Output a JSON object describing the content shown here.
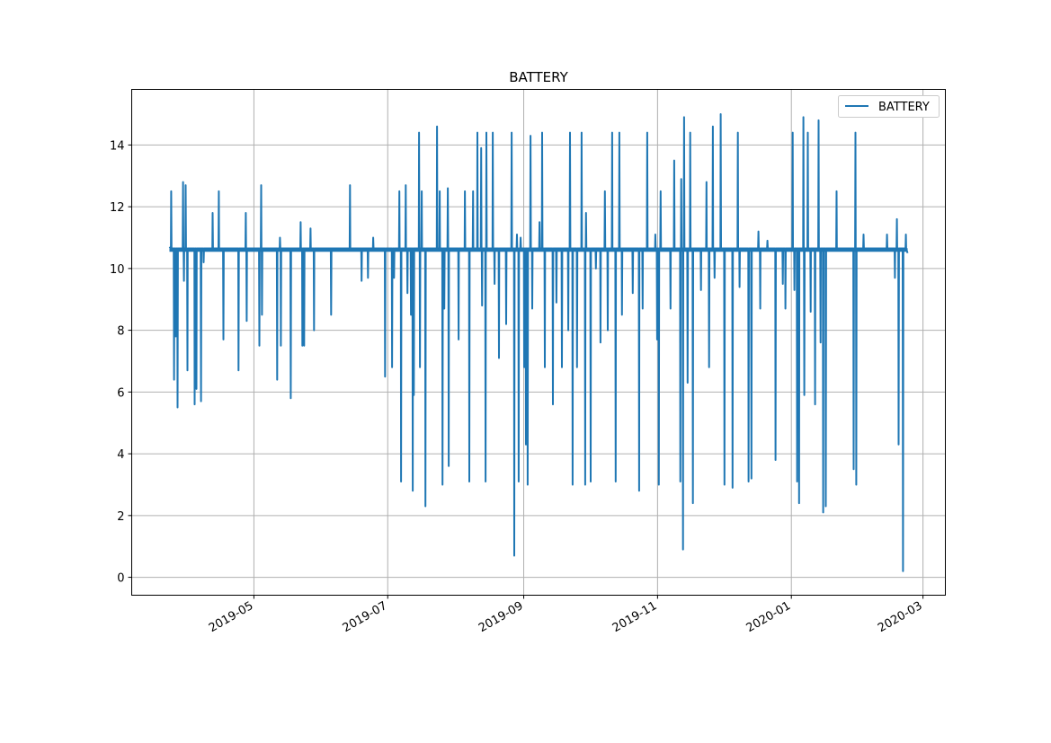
{
  "chart_data": {
    "type": "line",
    "title": "BATTERY",
    "xlabel": "",
    "ylabel": "",
    "x_units": "days since 2019-01-01",
    "xlim": [
      64.3,
      435.2
    ],
    "ylim": [
      -0.58,
      15.8
    ],
    "grid": true,
    "legend": {
      "position": "top-right",
      "entries": [
        "BATTERY"
      ]
    },
    "line_color": "#1f77b4",
    "baseline": 10.65,
    "x_ticks": [
      {
        "value": 120,
        "label": "2019-05"
      },
      {
        "value": 181,
        "label": "2019-07"
      },
      {
        "value": 243,
        "label": "2019-09"
      },
      {
        "value": 304,
        "label": "2019-11"
      },
      {
        "value": 365,
        "label": "2020-01"
      },
      {
        "value": 425,
        "label": "2020-03"
      }
    ],
    "y_ticks": [
      0,
      2,
      4,
      6,
      8,
      10,
      12,
      14
    ],
    "series": [
      {
        "name": "BATTERY",
        "start": [
          81.5,
          10.7
        ],
        "end": [
          418.0,
          10.5
        ],
        "spikes": [
          [
            82.3,
            12.5
          ],
          [
            83.6,
            6.4
          ],
          [
            84.4,
            7.8
          ],
          [
            85.2,
            5.5
          ],
          [
            87.7,
            12.8
          ],
          [
            88.1,
            9.6
          ],
          [
            88.9,
            12.7
          ],
          [
            89.7,
            6.7
          ],
          [
            93.0,
            5.6
          ],
          [
            93.8,
            6.1
          ],
          [
            95.9,
            5.7
          ],
          [
            97.1,
            10.2
          ],
          [
            101.2,
            11.8
          ],
          [
            104.0,
            12.5
          ],
          [
            106.1,
            7.7
          ],
          [
            113.0,
            6.7
          ],
          [
            116.3,
            11.8
          ],
          [
            116.7,
            8.3
          ],
          [
            122.5,
            7.5
          ],
          [
            123.3,
            12.7
          ],
          [
            123.7,
            8.5
          ],
          [
            130.6,
            6.4
          ],
          [
            131.9,
            11.0
          ],
          [
            132.3,
            7.5
          ],
          [
            136.8,
            5.8
          ],
          [
            141.3,
            11.5
          ],
          [
            142.1,
            7.5
          ],
          [
            142.9,
            7.5
          ],
          [
            145.8,
            11.3
          ],
          [
            147.4,
            8.0
          ],
          [
            155.2,
            8.5
          ],
          [
            163.8,
            12.7
          ],
          [
            169.1,
            9.6
          ],
          [
            172.0,
            9.7
          ],
          [
            174.4,
            11.0
          ],
          [
            179.8,
            6.5
          ],
          [
            183.0,
            6.8
          ],
          [
            183.9,
            9.7
          ],
          [
            186.3,
            12.5
          ],
          [
            187.1,
            3.1
          ],
          [
            189.2,
            12.7
          ],
          [
            190.0,
            9.2
          ],
          [
            191.6,
            8.5
          ],
          [
            192.4,
            2.8
          ],
          [
            192.9,
            5.9
          ],
          [
            195.3,
            14.4
          ],
          [
            195.7,
            6.8
          ],
          [
            196.5,
            12.5
          ],
          [
            198.2,
            2.3
          ],
          [
            203.5,
            14.6
          ],
          [
            204.7,
            12.5
          ],
          [
            206.0,
            3.0
          ],
          [
            206.8,
            8.7
          ],
          [
            208.4,
            12.6
          ],
          [
            208.8,
            3.6
          ],
          [
            213.3,
            7.7
          ],
          [
            216.2,
            12.5
          ],
          [
            218.2,
            3.1
          ],
          [
            219.9,
            12.5
          ],
          [
            221.9,
            14.4
          ],
          [
            223.6,
            13.9
          ],
          [
            224.0,
            8.8
          ],
          [
            225.6,
            3.1
          ],
          [
            226.0,
            14.4
          ],
          [
            228.9,
            14.4
          ],
          [
            229.7,
            9.5
          ],
          [
            231.7,
            7.1
          ],
          [
            235.0,
            8.2
          ],
          [
            237.5,
            14.4
          ],
          [
            238.7,
            0.7
          ],
          [
            239.9,
            11.1
          ],
          [
            240.7,
            3.1
          ],
          [
            241.6,
            11.0
          ],
          [
            243.2,
            6.8
          ],
          [
            244.0,
            4.3
          ],
          [
            244.8,
            3.0
          ],
          [
            246.1,
            14.3
          ],
          [
            246.9,
            8.7
          ],
          [
            250.2,
            11.5
          ],
          [
            251.4,
            14.4
          ],
          [
            252.6,
            6.8
          ],
          [
            256.3,
            5.6
          ],
          [
            257.9,
            8.9
          ],
          [
            260.4,
            6.8
          ],
          [
            263.3,
            8.0
          ],
          [
            264.1,
            14.4
          ],
          [
            265.3,
            3.0
          ],
          [
            267.3,
            6.8
          ],
          [
            269.4,
            14.4
          ],
          [
            271.0,
            3.0
          ],
          [
            271.4,
            11.8
          ],
          [
            273.5,
            3.1
          ],
          [
            275.9,
            10.0
          ],
          [
            278.0,
            7.6
          ],
          [
            280.0,
            12.5
          ],
          [
            281.3,
            8.0
          ],
          [
            283.3,
            14.4
          ],
          [
            284.9,
            3.1
          ],
          [
            286.6,
            14.4
          ],
          [
            287.8,
            8.5
          ],
          [
            292.7,
            9.2
          ],
          [
            295.6,
            2.8
          ],
          [
            297.2,
            8.7
          ],
          [
            299.3,
            14.4
          ],
          [
            303.0,
            11.1
          ],
          [
            303.8,
            7.7
          ],
          [
            304.6,
            3.0
          ],
          [
            305.4,
            12.5
          ],
          [
            309.9,
            8.7
          ],
          [
            311.6,
            13.5
          ],
          [
            314.4,
            3.1
          ],
          [
            314.8,
            12.9
          ],
          [
            315.6,
            0.9
          ],
          [
            316.1,
            14.9
          ],
          [
            317.7,
            6.3
          ],
          [
            318.9,
            14.4
          ],
          [
            320.1,
            2.4
          ],
          [
            323.8,
            9.3
          ],
          [
            326.3,
            12.8
          ],
          [
            327.5,
            6.8
          ],
          [
            329.2,
            14.6
          ],
          [
            330.0,
            9.7
          ],
          [
            332.8,
            15.0
          ],
          [
            334.5,
            3.0
          ],
          [
            338.2,
            2.9
          ],
          [
            340.6,
            14.4
          ],
          [
            341.4,
            9.4
          ],
          [
            345.5,
            3.1
          ],
          [
            346.8,
            3.2
          ],
          [
            350.0,
            11.2
          ],
          [
            350.8,
            8.7
          ],
          [
            354.1,
            10.9
          ],
          [
            357.8,
            3.8
          ],
          [
            361.1,
            9.5
          ],
          [
            362.3,
            8.7
          ],
          [
            365.6,
            14.4
          ],
          [
            366.4,
            9.3
          ],
          [
            367.6,
            3.1
          ],
          [
            368.5,
            2.4
          ],
          [
            370.5,
            14.9
          ],
          [
            370.9,
            5.9
          ],
          [
            372.5,
            14.4
          ],
          [
            373.8,
            8.6
          ],
          [
            375.8,
            5.6
          ],
          [
            377.4,
            14.8
          ],
          [
            378.3,
            7.6
          ],
          [
            379.5,
            2.1
          ],
          [
            380.7,
            2.3
          ],
          [
            385.6,
            12.5
          ],
          [
            393.4,
            3.5
          ],
          [
            394.2,
            14.4
          ],
          [
            394.6,
            3.0
          ],
          [
            397.9,
            11.1
          ],
          [
            408.6,
            11.1
          ],
          [
            412.2,
            9.7
          ],
          [
            413.1,
            11.6
          ],
          [
            413.9,
            4.3
          ],
          [
            415.9,
            0.2
          ],
          [
            417.2,
            11.1
          ]
        ]
      }
    ]
  }
}
